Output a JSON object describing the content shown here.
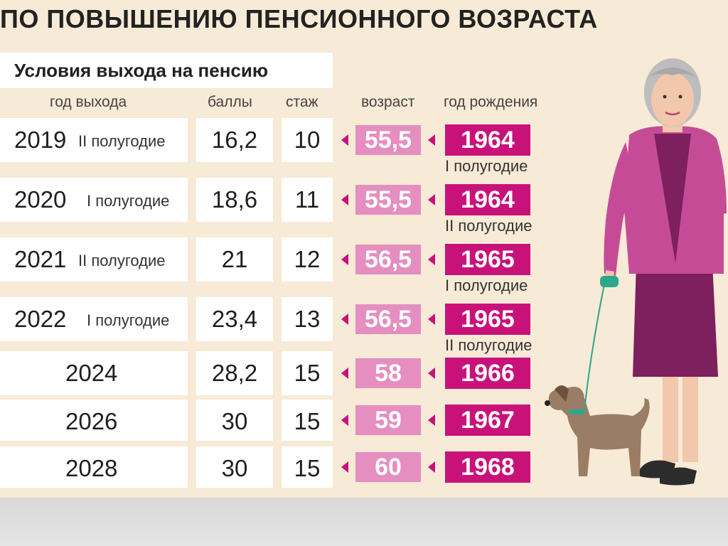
{
  "title": "ПО ПОВЫШЕНИЮ ПЕНСИОННОГО ВОЗРАСТА",
  "subtitle": "Условия выхода на пенсию",
  "columns": {
    "year": "год выхода",
    "points": "баллы",
    "experience": "стаж",
    "age": "возраст",
    "birth_year": "год рождения"
  },
  "rows": [
    {
      "year": "2019",
      "half": "II полугодие",
      "points": "16,2",
      "experience": "10",
      "age": "55,5",
      "birth_year": "1964",
      "birth_note": "I полугодие"
    },
    {
      "year": "2020",
      "half": "I полугодие",
      "points": "18,6",
      "experience": "11",
      "age": "55,5",
      "birth_year": "1964",
      "birth_note": "II полугодие"
    },
    {
      "year": "2021",
      "half": "II полугодие",
      "points": "21",
      "experience": "12",
      "age": "56,5",
      "birth_year": "1965",
      "birth_note": "I полугодие"
    },
    {
      "year": "2022",
      "half": "I полугодие",
      "points": "23,4",
      "experience": "13",
      "age": "56,5",
      "birth_year": "1965",
      "birth_note": "II полугодие"
    },
    {
      "year": "2024",
      "half": "",
      "points": "28,2",
      "experience": "15",
      "age": "58",
      "birth_year": "1966",
      "birth_note": ""
    },
    {
      "year": "2026",
      "half": "",
      "points": "30",
      "experience": "15",
      "age": "59",
      "birth_year": "1967",
      "birth_note": ""
    },
    {
      "year": "2028",
      "half": "",
      "points": "30",
      "experience": "15",
      "age": "60",
      "birth_year": "1968",
      "birth_note": ""
    }
  ],
  "colors": {
    "age_box": "#e58ec0",
    "birth_box": "#c8127a",
    "arrow": "#c8127a",
    "background": "#f7ead6"
  },
  "illustration": {
    "icons": [
      "elderly-woman-illustration",
      "dog-illustration"
    ]
  }
}
